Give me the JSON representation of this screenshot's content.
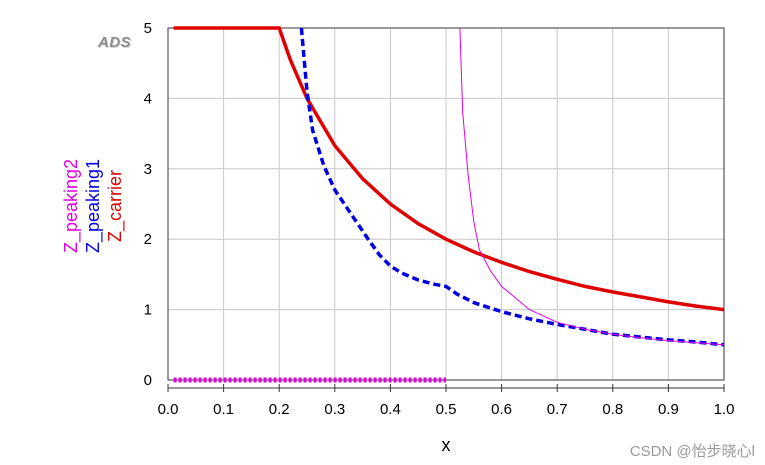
{
  "watermark_ads": "ADS",
  "watermark_csdn": "CSDN @怡步晓心l",
  "chart_data": {
    "type": "line",
    "xlabel": "x",
    "xlim": [
      0.0,
      1.0
    ],
    "ylim": [
      0,
      5
    ],
    "x_ticks": [
      "0.0",
      "0.1",
      "0.2",
      "0.3",
      "0.4",
      "0.5",
      "0.6",
      "0.7",
      "0.8",
      "0.9",
      "1.0"
    ],
    "y_ticks": [
      "0",
      "1",
      "2",
      "3",
      "4",
      "5"
    ],
    "grid": true,
    "legend": "vertical stacked labels at left",
    "series": [
      {
        "name": "Z_carrier",
        "color": "#e00000",
        "style": "solid-thick",
        "points": [
          [
            0.01,
            5
          ],
          [
            0.2,
            5
          ],
          [
            0.22,
            4.55
          ],
          [
            0.25,
            4.0
          ],
          [
            0.3,
            3.33
          ],
          [
            0.35,
            2.86
          ],
          [
            0.4,
            2.5
          ],
          [
            0.45,
            2.22
          ],
          [
            0.5,
            2.0
          ],
          [
            0.55,
            1.82
          ],
          [
            0.6,
            1.67
          ],
          [
            0.65,
            1.54
          ],
          [
            0.7,
            1.43
          ],
          [
            0.75,
            1.33
          ],
          [
            0.8,
            1.25
          ],
          [
            0.85,
            1.18
          ],
          [
            0.9,
            1.11
          ],
          [
            0.95,
            1.05
          ],
          [
            1.0,
            1.0
          ]
        ]
      },
      {
        "name": "Z_peaking1",
        "color": "#0000e0",
        "style": "dashed-thick",
        "points": [
          [
            0.24,
            5.0
          ],
          [
            0.25,
            4.1
          ],
          [
            0.26,
            3.55
          ],
          [
            0.28,
            3.05
          ],
          [
            0.3,
            2.7
          ],
          [
            0.33,
            2.35
          ],
          [
            0.36,
            2.0
          ],
          [
            0.38,
            1.78
          ],
          [
            0.4,
            1.62
          ],
          [
            0.42,
            1.52
          ],
          [
            0.45,
            1.42
          ],
          [
            0.48,
            1.36
          ],
          [
            0.5,
            1.33
          ],
          [
            0.52,
            1.22
          ],
          [
            0.55,
            1.1
          ],
          [
            0.6,
            0.97
          ],
          [
            0.65,
            0.87
          ],
          [
            0.7,
            0.79
          ],
          [
            0.75,
            0.72
          ],
          [
            0.8,
            0.65
          ],
          [
            0.85,
            0.61
          ],
          [
            0.9,
            0.57
          ],
          [
            0.95,
            0.54
          ],
          [
            1.0,
            0.5
          ]
        ]
      },
      {
        "name": "Z_peaking2",
        "color": "#e000e0",
        "style": "thin",
        "segments": [
          [
            [
              0.01,
              0.0
            ],
            [
              0.5,
              0.0
            ]
          ],
          [
            [
              0.525,
              5.0
            ],
            [
              0.53,
              3.8
            ],
            [
              0.54,
              2.9
            ],
            [
              0.55,
              2.25
            ],
            [
              0.56,
              1.85
            ],
            [
              0.58,
              1.55
            ],
            [
              0.6,
              1.33
            ],
            [
              0.65,
              1.0
            ],
            [
              0.7,
              0.82
            ],
            [
              0.75,
              0.72
            ],
            [
              0.8,
              0.65
            ],
            [
              0.85,
              0.6
            ],
            [
              0.9,
              0.56
            ],
            [
              0.95,
              0.53
            ],
            [
              1.0,
              0.5
            ]
          ]
        ]
      }
    ]
  }
}
